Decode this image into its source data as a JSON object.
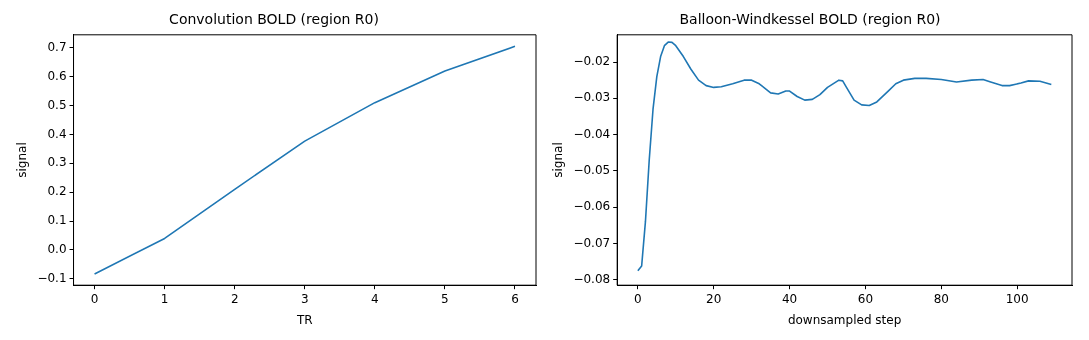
{
  "chart_data": [
    {
      "type": "line",
      "title": "Convolution BOLD (region R0)",
      "xlabel": "TR",
      "ylabel": "signal",
      "x": [
        0,
        1,
        2,
        3,
        4,
        5,
        6
      ],
      "series": [
        {
          "color": "#1f77b4",
          "values": [
            -0.083,
            0.04,
            0.21,
            0.377,
            0.51,
            0.62,
            0.705
          ]
        }
      ],
      "xlim": [
        -0.3,
        6.3
      ],
      "xticks": [
        0,
        1,
        2,
        3,
        4,
        5,
        6
      ],
      "ylim": [
        -0.122,
        0.745
      ],
      "yticks": [
        -0.1,
        {
          "value": 0,
          "label": "0.0"
        },
        0.1,
        0.2,
        0.3,
        0.4,
        0.5,
        0.6,
        0.7
      ],
      "grid": false,
      "legend": false
    },
    {
      "type": "line",
      "title": "Balloon-Windkessel BOLD (region R0)",
      "xlabel": "downsampled step",
      "ylabel": "signal",
      "x": [
        0,
        1,
        2,
        3,
        4,
        5,
        6,
        7,
        8,
        9,
        10,
        12,
        14,
        16,
        18,
        20,
        22,
        25,
        28,
        30,
        32,
        35,
        37,
        39,
        40,
        42,
        44,
        46,
        48,
        50,
        53,
        54,
        55,
        57,
        59,
        61,
        63,
        66,
        68,
        70,
        73,
        76,
        80,
        84,
        88,
        91,
        93,
        96,
        98,
        101,
        103,
        106,
        109
      ],
      "series": [
        {
          "color": "#1f77b4",
          "values": [
            -0.0775,
            -0.0762,
            -0.064,
            -0.047,
            -0.033,
            -0.024,
            -0.0185,
            -0.0155,
            -0.0145,
            -0.0146,
            -0.0155,
            -0.0185,
            -0.022,
            -0.025,
            -0.0265,
            -0.027,
            -0.0268,
            -0.026,
            -0.025,
            -0.025,
            -0.026,
            -0.0285,
            -0.0288,
            -0.028,
            -0.028,
            -0.0295,
            -0.0305,
            -0.0303,
            -0.029,
            -0.027,
            -0.025,
            -0.0252,
            -0.027,
            -0.0305,
            -0.0318,
            -0.032,
            -0.031,
            -0.028,
            -0.026,
            -0.025,
            -0.0245,
            -0.0245,
            -0.0248,
            -0.0255,
            -0.025,
            -0.0248,
            -0.0255,
            -0.0265,
            -0.0265,
            -0.0258,
            -0.0252,
            -0.0253,
            -0.0262
          ]
        }
      ],
      "xlim": [
        -5.45,
        114.45
      ],
      "xticks": [
        0,
        20,
        40,
        60,
        80,
        100
      ],
      "ylim": [
        -0.0815,
        -0.0125
      ],
      "yticks": [
        -0.08,
        -0.07,
        -0.06,
        -0.05,
        -0.04,
        -0.03,
        -0.02
      ],
      "grid": false,
      "legend": false
    }
  ]
}
